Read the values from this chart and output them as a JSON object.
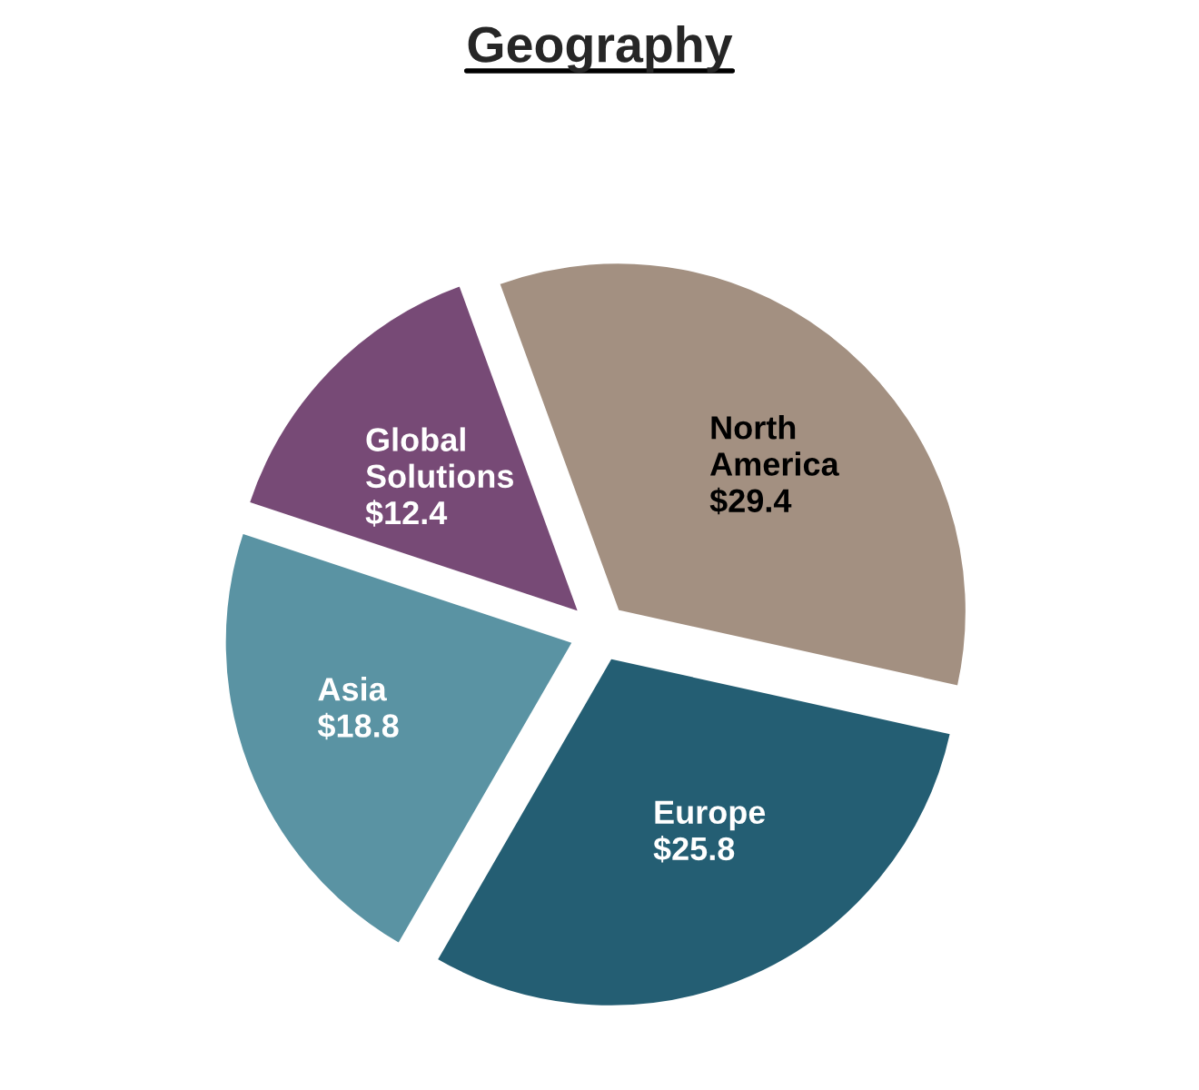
{
  "chart_data": {
    "type": "pie",
    "title": "Geography",
    "categories": [
      "North\nAmerica",
      "Europe",
      "Asia",
      "Global\nSolutions"
    ],
    "values": [
      29.4,
      25.8,
      18.8,
      12.4
    ],
    "value_labels": [
      "$29.4",
      "$25.8",
      "$18.8",
      "$12.4"
    ],
    "colors": [
      "#a39081",
      "#245e73",
      "#5a93a3",
      "#774a76"
    ],
    "legend": false
  }
}
